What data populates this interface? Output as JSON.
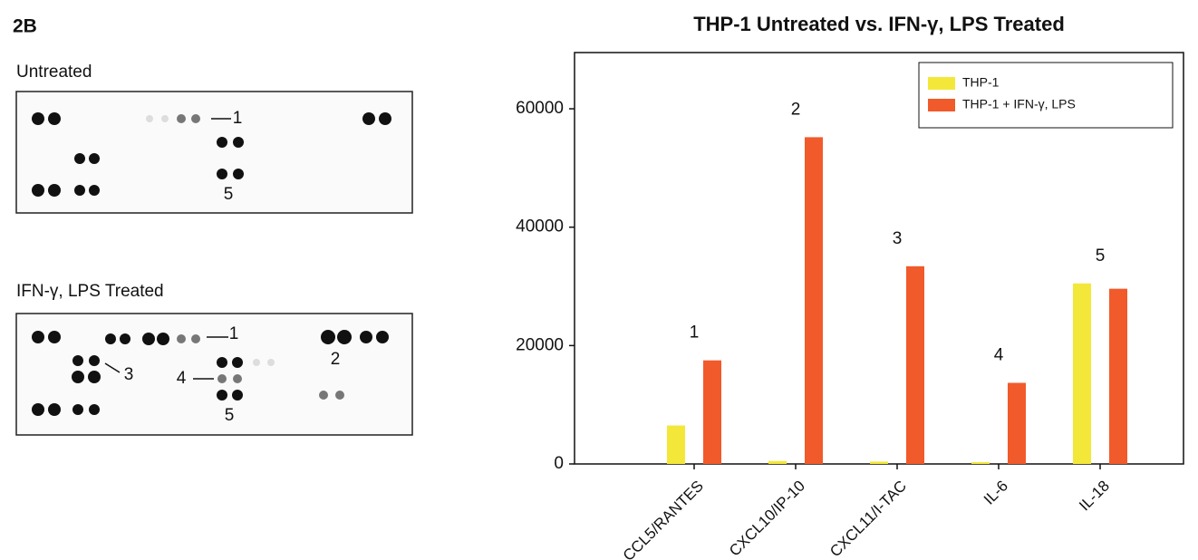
{
  "figure": {
    "panel_label": "2B",
    "blots": [
      {
        "title": "Untreated",
        "labels": [
          "1",
          "5"
        ]
      },
      {
        "title": "IFN-γ, LPS Treated",
        "labels": [
          "1",
          "3",
          "2",
          "4",
          "5"
        ]
      }
    ]
  },
  "chart_data": {
    "type": "bar",
    "title": "THP-1 Untreated vs. IFN-γ, LPS Treated",
    "categories": [
      "CCL5/RANTES",
      "CXCL10/IP-10",
      "CXCL11/I-TAC",
      "IL-6",
      "IL-18"
    ],
    "series": [
      {
        "name": "THP-1",
        "color": "#f3e83a",
        "values": [
          6500,
          500,
          400,
          300,
          30500
        ]
      },
      {
        "name": "THP-1 + IFN-γ, LPS",
        "color": "#f15a2b",
        "values": [
          17500,
          55200,
          33400,
          13700,
          29600
        ]
      }
    ],
    "annotations": [
      "1",
      "2",
      "3",
      "4",
      "5"
    ],
    "ylim": [
      0,
      69500
    ],
    "yticks": [
      0,
      20000,
      40000,
      60000
    ],
    "legend": "upper right",
    "grid": false
  }
}
